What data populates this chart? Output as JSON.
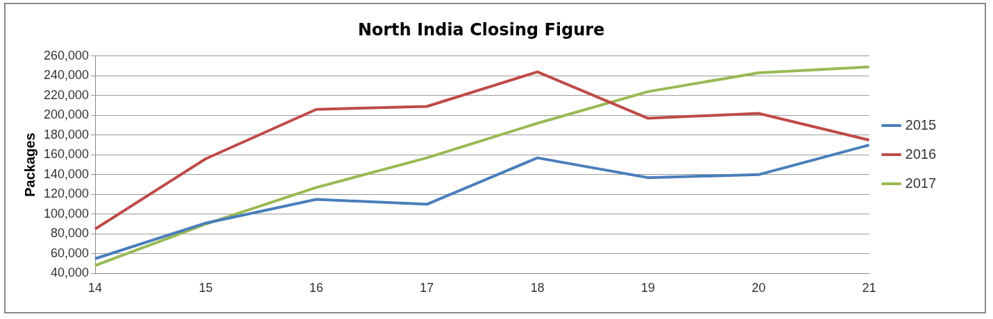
{
  "chart_data": {
    "type": "line",
    "title": "North India Closing Figure",
    "ylabel": "Packages",
    "categories": [
      "14",
      "15",
      "16",
      "17",
      "18",
      "19",
      "20",
      "21"
    ],
    "series": [
      {
        "name": "2015",
        "color": "#4a7ebb",
        "values": [
          55000,
          91000,
          115000,
          110000,
          157000,
          137000,
          140000,
          170000
        ]
      },
      {
        "name": "2016",
        "color": "#be4b48",
        "values": [
          85000,
          156000,
          206000,
          209000,
          244000,
          197000,
          202000,
          175000
        ]
      },
      {
        "name": "2017",
        "color": "#98b954",
        "values": [
          48000,
          90000,
          127000,
          157000,
          192000,
          224000,
          243000,
          249000
        ]
      }
    ],
    "ylim": [
      40000,
      260000
    ],
    "yticks": [
      {
        "value": 40000,
        "label": "40,000"
      },
      {
        "value": 60000,
        "label": "60,000"
      },
      {
        "value": 80000,
        "label": "80,000"
      },
      {
        "value": 100000,
        "label": "100,000"
      },
      {
        "value": 120000,
        "label": "120,000"
      },
      {
        "value": 140000,
        "label": "140,000"
      },
      {
        "value": 160000,
        "label": "160,000"
      },
      {
        "value": 180000,
        "label": "180,000"
      },
      {
        "value": 200000,
        "label": "200,000"
      },
      {
        "value": 220000,
        "label": "220,000"
      },
      {
        "value": 240000,
        "label": "240,000"
      },
      {
        "value": 260000,
        "label": "260,000"
      }
    ],
    "grid": "y",
    "legend": "right",
    "marker": "none",
    "line_style": "solid"
  }
}
